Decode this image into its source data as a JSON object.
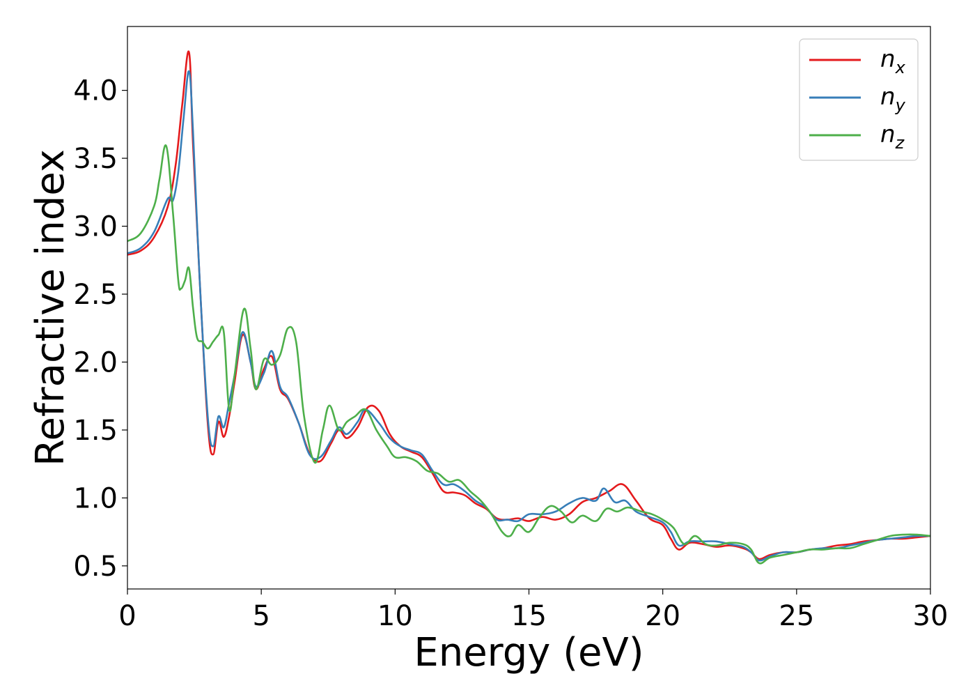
{
  "chart_data": {
    "type": "line",
    "title": "",
    "xlabel": "Energy (eV)",
    "ylabel": "Refractive index",
    "xlim": [
      0,
      30
    ],
    "ylim": [
      0.33,
      4.47
    ],
    "xticks": [
      0,
      5,
      10,
      15,
      20,
      25,
      30
    ],
    "xtick_labels": [
      "0",
      "5",
      "10",
      "15",
      "20",
      "25",
      "30"
    ],
    "yticks": [
      0.5,
      1.0,
      1.5,
      2.0,
      2.5,
      3.0,
      3.5,
      4.0
    ],
    "ytick_labels": [
      "0.5",
      "1.0",
      "1.5",
      "2.0",
      "2.5",
      "3.0",
      "3.5",
      "4.0"
    ],
    "grid": false,
    "legend_position": "top-right",
    "series": [
      {
        "name_base": "n",
        "name_sub": "x",
        "color": "#e41a1c",
        "x": [
          0,
          0.5,
          1.0,
          1.5,
          1.8,
          2.05,
          2.3,
          2.45,
          2.7,
          3.0,
          3.2,
          3.4,
          3.6,
          3.8,
          4.0,
          4.3,
          4.6,
          4.8,
          5.1,
          5.4,
          5.7,
          6.0,
          6.4,
          6.8,
          7.2,
          7.6,
          7.9,
          8.2,
          8.6,
          9.0,
          9.4,
          9.8,
          10.2,
          10.6,
          11.0,
          11.4,
          11.8,
          12.2,
          12.6,
          13.0,
          13.4,
          13.8,
          14.2,
          14.6,
          15.0,
          15.5,
          16.0,
          16.5,
          17.0,
          17.5,
          18.0,
          18.5,
          19.0,
          19.5,
          20.0,
          20.3,
          20.6,
          21.0,
          21.5,
          22.0,
          22.5,
          23.0,
          23.3,
          23.6,
          24.0,
          24.5,
          25.0,
          25.5,
          26.0,
          26.5,
          27.0,
          27.5,
          28.0,
          28.5,
          29.0,
          29.5,
          30.0
        ],
        "y": [
          2.79,
          2.82,
          2.92,
          3.14,
          3.45,
          3.9,
          4.28,
          3.6,
          2.6,
          1.55,
          1.32,
          1.56,
          1.45,
          1.6,
          1.85,
          2.2,
          2.0,
          1.8,
          1.95,
          2.04,
          1.8,
          1.73,
          1.55,
          1.33,
          1.27,
          1.4,
          1.5,
          1.44,
          1.52,
          1.67,
          1.64,
          1.47,
          1.38,
          1.34,
          1.3,
          1.18,
          1.05,
          1.04,
          1.02,
          0.96,
          0.92,
          0.85,
          0.84,
          0.85,
          0.83,
          0.86,
          0.84,
          0.88,
          0.97,
          1.0,
          1.05,
          1.1,
          0.98,
          0.85,
          0.8,
          0.7,
          0.62,
          0.67,
          0.66,
          0.64,
          0.65,
          0.63,
          0.6,
          0.55,
          0.58,
          0.6,
          0.6,
          0.62,
          0.63,
          0.65,
          0.66,
          0.68,
          0.69,
          0.7,
          0.7,
          0.71,
          0.72
        ]
      },
      {
        "name_base": "n",
        "name_sub": "y",
        "color": "#377eb8",
        "x": [
          0,
          0.5,
          1.0,
          1.5,
          1.7,
          1.9,
          2.1,
          2.3,
          2.45,
          2.7,
          3.0,
          3.2,
          3.4,
          3.6,
          3.8,
          4.0,
          4.3,
          4.6,
          4.8,
          5.1,
          5.4,
          5.7,
          6.0,
          6.4,
          6.8,
          7.2,
          7.6,
          7.9,
          8.2,
          8.6,
          8.9,
          9.4,
          9.8,
          10.2,
          10.6,
          11.0,
          11.4,
          11.8,
          12.2,
          12.6,
          13.0,
          13.4,
          13.8,
          14.2,
          14.6,
          15.0,
          15.5,
          16.0,
          16.5,
          17.0,
          17.5,
          17.8,
          18.2,
          18.6,
          19.0,
          19.5,
          20.0,
          20.3,
          20.6,
          21.0,
          21.5,
          22.0,
          22.5,
          23.0,
          23.3,
          23.6,
          24.0,
          24.5,
          25.0,
          25.5,
          26.0,
          26.5,
          27.0,
          27.5,
          28.0,
          28.5,
          29.0,
          29.5,
          30.0
        ],
        "y": [
          2.8,
          2.84,
          2.96,
          3.2,
          3.19,
          3.4,
          3.8,
          4.14,
          3.7,
          2.6,
          1.6,
          1.38,
          1.6,
          1.52,
          1.7,
          1.9,
          2.22,
          2.0,
          1.82,
          1.92,
          2.08,
          1.82,
          1.74,
          1.55,
          1.32,
          1.3,
          1.42,
          1.52,
          1.47,
          1.56,
          1.65,
          1.55,
          1.44,
          1.38,
          1.35,
          1.32,
          1.2,
          1.1,
          1.1,
          1.05,
          0.98,
          0.93,
          0.84,
          0.84,
          0.83,
          0.88,
          0.88,
          0.9,
          0.96,
          1.0,
          0.98,
          1.07,
          0.97,
          0.98,
          0.9,
          0.86,
          0.82,
          0.75,
          0.65,
          0.68,
          0.68,
          0.68,
          0.66,
          0.64,
          0.6,
          0.54,
          0.57,
          0.6,
          0.6,
          0.62,
          0.63,
          0.63,
          0.65,
          0.67,
          0.69,
          0.7,
          0.71,
          0.72,
          0.72
        ]
      },
      {
        "name_base": "n",
        "name_sub": "z",
        "color": "#4daf4a",
        "x": [
          0,
          0.5,
          1.0,
          1.2,
          1.45,
          1.7,
          1.9,
          2.0,
          2.15,
          2.3,
          2.45,
          2.6,
          2.8,
          3.0,
          3.2,
          3.4,
          3.6,
          3.8,
          4.0,
          4.35,
          4.6,
          4.8,
          5.1,
          5.4,
          5.7,
          6.0,
          6.3,
          6.6,
          7.0,
          7.3,
          7.55,
          7.9,
          8.2,
          8.5,
          8.9,
          9.3,
          9.7,
          10.0,
          10.4,
          10.8,
          11.2,
          11.6,
          12.0,
          12.4,
          12.8,
          13.2,
          13.6,
          14.0,
          14.3,
          14.6,
          15.0,
          15.4,
          15.8,
          16.2,
          16.6,
          17.0,
          17.5,
          17.9,
          18.3,
          18.7,
          19.2,
          19.6,
          20.0,
          20.4,
          20.8,
          21.2,
          21.6,
          22.0,
          22.5,
          23.0,
          23.3,
          23.6,
          24.0,
          24.5,
          25.0,
          25.5,
          26.0,
          26.5,
          27.0,
          27.5,
          28.0,
          28.5,
          29.0,
          29.5,
          30.0
        ],
        "y": [
          2.89,
          2.95,
          3.15,
          3.35,
          3.59,
          3.1,
          2.6,
          2.54,
          2.6,
          2.69,
          2.4,
          2.18,
          2.15,
          2.1,
          2.15,
          2.2,
          2.22,
          1.65,
          1.9,
          2.39,
          2.1,
          1.8,
          2.02,
          1.98,
          2.05,
          2.25,
          2.15,
          1.6,
          1.26,
          1.5,
          1.68,
          1.5,
          1.56,
          1.6,
          1.65,
          1.5,
          1.38,
          1.3,
          1.3,
          1.27,
          1.2,
          1.18,
          1.12,
          1.13,
          1.05,
          0.98,
          0.88,
          0.75,
          0.72,
          0.8,
          0.75,
          0.86,
          0.94,
          0.9,
          0.82,
          0.87,
          0.83,
          0.92,
          0.9,
          0.93,
          0.9,
          0.88,
          0.84,
          0.78,
          0.66,
          0.72,
          0.66,
          0.65,
          0.67,
          0.66,
          0.62,
          0.52,
          0.56,
          0.58,
          0.6,
          0.62,
          0.62,
          0.63,
          0.63,
          0.66,
          0.69,
          0.72,
          0.73,
          0.73,
          0.72
        ]
      }
    ]
  }
}
